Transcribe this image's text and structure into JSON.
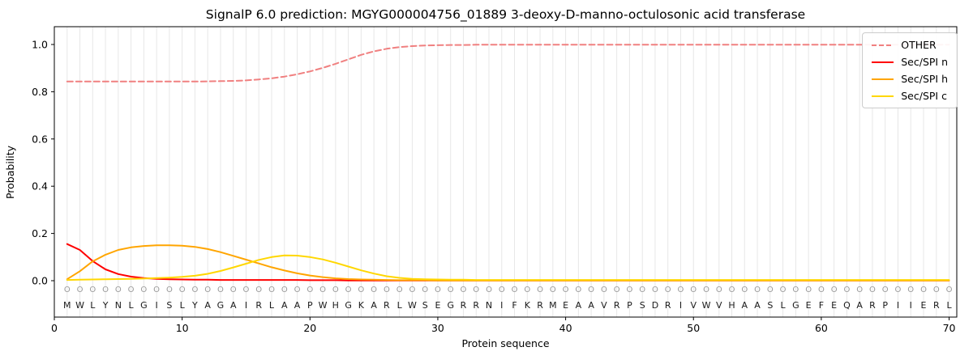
{
  "title": "SignalP 6.0 prediction: MGYG000004756_01889 3-deoxy-D-manno-octulosonic acid transferase",
  "chart_data": {
    "type": "line",
    "xlabel": "Protein sequence",
    "ylabel": "Probability",
    "xlim": [
      0,
      70.6
    ],
    "ylim": [
      -0.15,
      1.08
    ],
    "yticks": [
      0.0,
      0.2,
      0.4,
      0.6,
      0.8,
      1.0
    ],
    "xticks": [
      0,
      10,
      20,
      30,
      40,
      50,
      60,
      70
    ],
    "grid": "vertical-per-residue",
    "legend_position": "upper right",
    "sequence": "MWLYNLGISLYAGAIRLAAPWHGKARLWSEGRRNIFKRMEAAVRPSDRIVWVHAASLGEFEQARPIIERL",
    "residue_class_labels": "OOOOOOOOOOOOOOOOOOOOOOOOOOOOOOOOOOOOOOOOOOOOOOOOOOOOOOOOOOOOOOOOOOOOOO",
    "series": [
      {
        "name": "OTHER",
        "color": "#F08080",
        "dash": true,
        "values": [
          0.843,
          0.843,
          0.843,
          0.843,
          0.843,
          0.843,
          0.843,
          0.843,
          0.843,
          0.843,
          0.843,
          0.844,
          0.845,
          0.846,
          0.848,
          0.852,
          0.857,
          0.864,
          0.874,
          0.886,
          0.901,
          0.918,
          0.937,
          0.956,
          0.971,
          0.982,
          0.989,
          0.993,
          0.996,
          0.997,
          0.998,
          0.998,
          0.999,
          0.999,
          0.999,
          0.999,
          0.999,
          0.999,
          0.999,
          0.999,
          0.999,
          0.999,
          0.999,
          0.999,
          0.999,
          0.999,
          0.999,
          0.999,
          0.999,
          0.999,
          0.999,
          0.999,
          0.999,
          0.999,
          0.999,
          0.999,
          0.999,
          0.999,
          0.999,
          0.999,
          0.999,
          0.999,
          0.999,
          0.999,
          0.999,
          0.999,
          0.999,
          0.999,
          0.999,
          0.999
        ]
      },
      {
        "name": "Sec/SPI n",
        "color": "#FF0000",
        "dash": false,
        "values": [
          0.155,
          0.13,
          0.083,
          0.048,
          0.028,
          0.017,
          0.011,
          0.008,
          0.006,
          0.005,
          0.004,
          0.004,
          0.003,
          0.003,
          0.003,
          0.003,
          0.003,
          0.003,
          0.003,
          0.002,
          0.002,
          0.002,
          0.001,
          0.001,
          0.001,
          0.001,
          0.001,
          0.001,
          0.001,
          0.001,
          0.001,
          0.001,
          0.001,
          0.001,
          0.001,
          0.001,
          0.001,
          0.001,
          0.001,
          0.001,
          0.001,
          0.001,
          0.001,
          0.001,
          0.001,
          0.001,
          0.001,
          0.001,
          0.001,
          0.001,
          0.001,
          0.001,
          0.001,
          0.001,
          0.001,
          0.001,
          0.001,
          0.001,
          0.001,
          0.001,
          0.001,
          0.001,
          0.001,
          0.001,
          0.001,
          0.001,
          0.001,
          0.001,
          0.001,
          0.001
        ]
      },
      {
        "name": "Sec/SPI h",
        "color": "#FFA500",
        "dash": false,
        "values": [
          0.006,
          0.04,
          0.082,
          0.11,
          0.13,
          0.141,
          0.147,
          0.15,
          0.15,
          0.148,
          0.143,
          0.134,
          0.121,
          0.105,
          0.089,
          0.073,
          0.057,
          0.043,
          0.031,
          0.022,
          0.015,
          0.01,
          0.007,
          0.005,
          0.004,
          0.003,
          0.002,
          0.002,
          0.002,
          0.001,
          0.001,
          0.001,
          0.001,
          0.001,
          0.001,
          0.001,
          0.001,
          0.001,
          0.001,
          0.001,
          0.001,
          0.001,
          0.001,
          0.001,
          0.001,
          0.001,
          0.001,
          0.001,
          0.001,
          0.001,
          0.001,
          0.001,
          0.001,
          0.001,
          0.001,
          0.001,
          0.001,
          0.001,
          0.001,
          0.001,
          0.001,
          0.001,
          0.001,
          0.001,
          0.001,
          0.001,
          0.001,
          0.001,
          0.001,
          0.001
        ]
      },
      {
        "name": "Sec/SPI c",
        "color": "#FFD700",
        "dash": false,
        "values": [
          0.003,
          0.004,
          0.005,
          0.006,
          0.007,
          0.008,
          0.009,
          0.011,
          0.013,
          0.016,
          0.021,
          0.029,
          0.041,
          0.056,
          0.072,
          0.088,
          0.1,
          0.107,
          0.106,
          0.1,
          0.09,
          0.076,
          0.06,
          0.044,
          0.03,
          0.019,
          0.012,
          0.008,
          0.006,
          0.005,
          0.004,
          0.004,
          0.003,
          0.003,
          0.003,
          0.003,
          0.003,
          0.003,
          0.003,
          0.003,
          0.003,
          0.003,
          0.003,
          0.003,
          0.003,
          0.003,
          0.003,
          0.003,
          0.003,
          0.003,
          0.003,
          0.003,
          0.003,
          0.003,
          0.003,
          0.003,
          0.003,
          0.003,
          0.003,
          0.003,
          0.003,
          0.003,
          0.003,
          0.003,
          0.003,
          0.003,
          0.003,
          0.003,
          0.003,
          0.003
        ]
      }
    ]
  }
}
